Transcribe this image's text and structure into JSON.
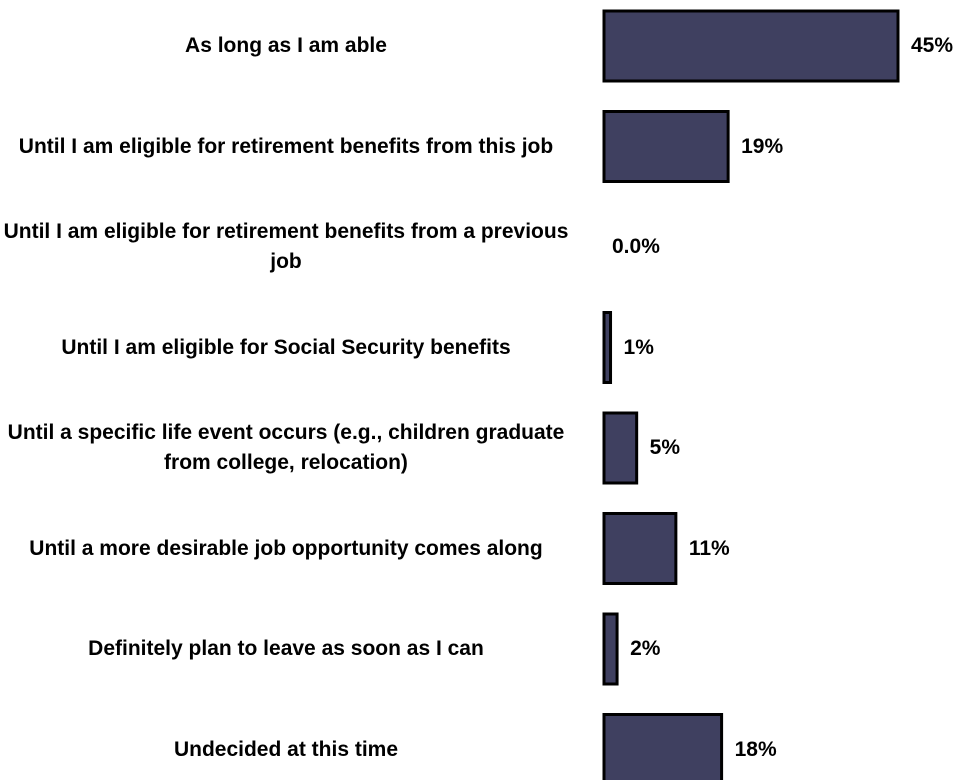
{
  "chart_data": {
    "type": "bar",
    "orientation": "horizontal",
    "categories": [
      "As long as I am able",
      "Until I am eligible for retirement benefits from this job",
      "Until I am eligible for retirement benefits from a previous job",
      "Until I am eligible for Social Security benefits",
      "Until a specific life event occurs (e.g., children graduate from college, relocation)",
      "Until a more desirable job opportunity comes along",
      "Definitely plan to leave as soon as I can",
      "Undecided at this time"
    ],
    "values": [
      45,
      19,
      0,
      1,
      5,
      11,
      2,
      18
    ],
    "value_labels": [
      "45%",
      "19%",
      "0.0%",
      "1%",
      "5%",
      "11%",
      "2%",
      "18%"
    ],
    "title": "",
    "xlabel": "",
    "ylabel": "",
    "xlim": [
      0,
      45
    ],
    "grid": false,
    "legend": "none",
    "colors": {
      "bar_fill": "#3f4060",
      "bar_stroke": "#000000",
      "text": "#000000"
    }
  }
}
